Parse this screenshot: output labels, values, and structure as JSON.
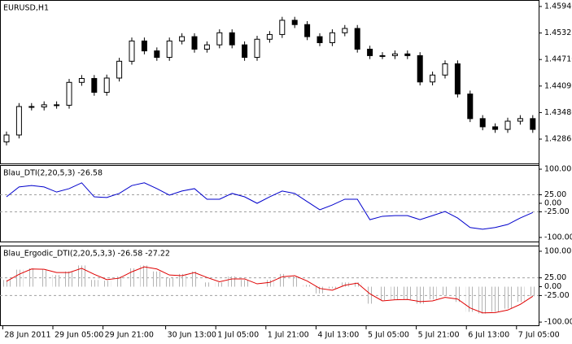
{
  "chart_data": [
    {
      "type": "candlestick",
      "title": "EURUSD,H1",
      "categories": [
        null,
        "28 Jun 2011",
        null,
        null,
        null,
        "29 Jun 05:00",
        null,
        null,
        null,
        "29 Jun 21:00",
        null,
        null,
        null,
        null,
        "30 Jun 13:00",
        null,
        null,
        null,
        "1 Jul 05:00",
        null,
        null,
        null,
        "1 Jul 21:00",
        null,
        null,
        null,
        "4 Jul 13:00",
        null,
        null,
        null,
        "5 Jul 05:00",
        null,
        null,
        null,
        "5 Jul 21:00",
        null,
        null,
        null,
        "6 Jul 13:00",
        null,
        null,
        null,
        "7 Jul 05:00"
      ],
      "open": [
        1.428,
        1.4296,
        1.4362,
        1.4361,
        1.4366,
        1.4365,
        1.4418,
        1.4427,
        1.4395,
        1.4428,
        1.4467,
        1.4514,
        1.4491,
        1.4476,
        1.4514,
        1.4524,
        1.4495,
        1.4505,
        1.4533,
        1.4505,
        1.4476,
        1.4518,
        1.4529,
        1.4562,
        1.4552,
        1.4524,
        1.451,
        1.4533,
        1.4543,
        1.4495,
        1.448,
        1.448,
        1.4484,
        1.448,
        1.4419,
        1.4435,
        1.4461,
        1.4391,
        1.4334,
        1.4315,
        1.4309,
        1.4328,
        1.4334
      ],
      "high": [
        1.4304,
        1.437,
        1.437,
        1.4374,
        1.4374,
        1.4426,
        1.4435,
        1.4435,
        1.4436,
        1.4475,
        1.4522,
        1.4522,
        1.4499,
        1.4522,
        1.4532,
        1.4532,
        1.4513,
        1.4541,
        1.4541,
        1.4513,
        1.4526,
        1.4537,
        1.457,
        1.457,
        1.456,
        1.4532,
        1.4541,
        1.4551,
        1.4551,
        1.4503,
        1.4488,
        1.4492,
        1.4492,
        1.4488,
        1.4443,
        1.4469,
        1.4469,
        1.4399,
        1.4342,
        1.4323,
        1.4336,
        1.4342,
        1.4342
      ],
      "low": [
        1.4272,
        1.4288,
        1.4353,
        1.4353,
        1.4357,
        1.4357,
        1.441,
        1.4387,
        1.4387,
        1.442,
        1.4459,
        1.4483,
        1.4468,
        1.4468,
        1.4506,
        1.4487,
        1.4487,
        1.4497,
        1.4497,
        1.4468,
        1.4468,
        1.451,
        1.4521,
        1.4544,
        1.4516,
        1.4502,
        1.4502,
        1.4525,
        1.4487,
        1.4472,
        1.4472,
        1.4472,
        1.4472,
        1.4411,
        1.4411,
        1.4427,
        1.4383,
        1.4326,
        1.4307,
        1.4301,
        1.4301,
        1.432,
        1.4301
      ],
      "close": [
        1.4296,
        1.4362,
        1.4361,
        1.4366,
        1.4365,
        1.4418,
        1.4427,
        1.4395,
        1.4428,
        1.4467,
        1.4514,
        1.4491,
        1.4476,
        1.4514,
        1.4524,
        1.4495,
        1.4505,
        1.4533,
        1.4505,
        1.4476,
        1.4518,
        1.4529,
        1.4562,
        1.4552,
        1.4524,
        1.451,
        1.4533,
        1.4543,
        1.4495,
        1.448,
        1.448,
        1.4484,
        1.448,
        1.4419,
        1.4435,
        1.4461,
        1.4391,
        1.4334,
        1.4315,
        1.4309,
        1.4328,
        1.4334,
        1.4309
      ],
      "color": "#000000",
      "ylim": [
        1.423,
        1.4609
      ],
      "yticks": [
        {
          "value": 1.4594,
          "label": "1.45940"
        },
        1.45325,
        {
          "value": 1.4471,
          "label": "1.44710"
        },
        1.44095,
        {
          "value": 1.4348,
          "label": "1.43480"
        },
        1.42865
      ]
    },
    {
      "type": "line",
      "title": "Blau_DTI(2,20,5,3) -26.58",
      "values": [
        19,
        48,
        52,
        48,
        33,
        43,
        60,
        19,
        17,
        29,
        52,
        60,
        43,
        24,
        36,
        43,
        12,
        12,
        29,
        19,
        0,
        19,
        36,
        29,
        5,
        -19,
        -5,
        12,
        12,
        -48,
        -38,
        -36,
        -36,
        -48,
        -36,
        -24,
        -43,
        -71,
        -76,
        -71,
        -62,
        -43,
        -27
      ],
      "color": "#0000cc",
      "ylim": [
        -112,
        112
      ],
      "yticks": [
        {
          "value": 100,
          "label": "100.00"
        },
        {
          "value": 25,
          "label": "25.00"
        },
        {
          "value": 0,
          "label": "0.00"
        },
        {
          "value": -25,
          "label": "-25.00"
        },
        {
          "value": -100,
          "label": "-100.00"
        }
      ],
      "levels": [
        25,
        -25
      ]
    },
    {
      "type": "combo",
      "title": "Blau_Ergodic_DTI(2,20,5,3,3) -26.58 -27.22",
      "series": [
        {
          "type": "bar",
          "color": "#b4b4b4",
          "values": [
            19,
            48,
            52,
            48,
            33,
            43,
            60,
            19,
            17,
            29,
            52,
            60,
            43,
            24,
            36,
            43,
            12,
            12,
            29,
            19,
            0,
            19,
            36,
            29,
            5,
            -19,
            -5,
            12,
            12,
            -48,
            -38,
            -36,
            -36,
            -48,
            -36,
            -24,
            -43,
            -71,
            -76,
            -71,
            -62,
            -43,
            -27
          ]
        },
        {
          "type": "line",
          "color": "#e00000",
          "values": [
            15,
            35,
            50,
            49,
            40,
            40,
            52,
            35,
            20,
            24,
            42,
            56,
            50,
            33,
            31,
            40,
            26,
            14,
            22,
            22,
            8,
            12,
            28,
            31,
            16,
            -5,
            -10,
            4,
            10,
            -20,
            -40,
            -37,
            -36,
            -42,
            -40,
            -30,
            -35,
            -60,
            -74,
            -73,
            -66,
            -50,
            -27
          ]
        }
      ],
      "ylim": [
        -109,
        116
      ],
      "yticks": [
        {
          "value": 100,
          "label": "100.00"
        },
        {
          "value": 25,
          "label": "25.00"
        },
        {
          "value": 0,
          "label": "0.00"
        },
        {
          "value": -25,
          "label": "-25.00"
        },
        {
          "value": -100,
          "label": "-100.00"
        }
      ],
      "levels": [
        25,
        -25
      ]
    }
  ]
}
